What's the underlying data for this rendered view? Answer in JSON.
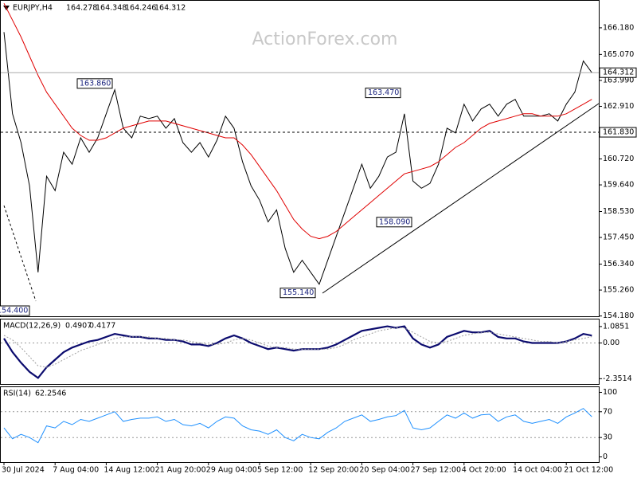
{
  "watermark": "ActionForex.com",
  "chart_data": [
    {
      "type": "ohlc-line",
      "symbol": "EURJPY,H4",
      "last_bar": {
        "open": 164.278,
        "high": 164.348,
        "low": 164.246,
        "close": 164.312
      },
      "categories": [
        "30 Jul 2024",
        null,
        null,
        null,
        null,
        null,
        "7 Aug 04:00",
        null,
        null,
        null,
        null,
        null,
        "14 Aug 12:00",
        null,
        null,
        null,
        null,
        null,
        "21 Aug 20:00",
        null,
        null,
        null,
        null,
        null,
        "29 Aug 04:00",
        null,
        null,
        null,
        null,
        null,
        "5 Sep 12:00",
        null,
        null,
        null,
        null,
        null,
        "12 Sep 20:00",
        null,
        null,
        null,
        null,
        null,
        "20 Sep 04:00",
        null,
        null,
        null,
        null,
        null,
        "27 Sep 12:00",
        null,
        null,
        null,
        null,
        null,
        "4 Oct 20:00",
        null,
        null,
        null,
        null,
        null,
        "14 Oct 04:00",
        null,
        null,
        null,
        null,
        null,
        "21 Oct 12:00",
        null,
        null,
        null
      ],
      "series": [
        {
          "name": "Close",
          "color": "#000000",
          "values": [
            166.0,
            162.6,
            161.4,
            159.6,
            156.0,
            160.0,
            159.4,
            161.0,
            160.5,
            161.6,
            161.0,
            161.6,
            162.6,
            163.6,
            162.0,
            161.6,
            162.5,
            162.4,
            162.5,
            162.0,
            162.4,
            161.4,
            161.0,
            161.4,
            160.8,
            161.5,
            162.5,
            162.0,
            160.6,
            159.6,
            159.0,
            158.1,
            158.6,
            157.0,
            156.0,
            156.5,
            156.0,
            155.5,
            156.5,
            157.5,
            158.5,
            159.5,
            160.5,
            159.5,
            160.0,
            160.8,
            161.0,
            162.6,
            159.8,
            159.5,
            159.7,
            160.5,
            162.0,
            161.8,
            163.0,
            162.3,
            162.8,
            163.0,
            162.5,
            163.0,
            163.2,
            162.5,
            162.5,
            162.5,
            162.6,
            162.3,
            163.0,
            163.5,
            164.8,
            164.312
          ]
        },
        {
          "name": "MA",
          "color": "#e00000",
          "values": [
            167.2,
            166.5,
            165.8,
            165.0,
            164.2,
            163.5,
            163.0,
            162.5,
            162.0,
            161.7,
            161.5,
            161.5,
            161.6,
            161.8,
            162.0,
            162.1,
            162.2,
            162.3,
            162.3,
            162.3,
            162.2,
            162.1,
            162.0,
            161.9,
            161.8,
            161.7,
            161.6,
            161.6,
            161.3,
            160.9,
            160.4,
            159.9,
            159.4,
            158.8,
            158.2,
            157.8,
            157.5,
            157.4,
            157.5,
            157.7,
            158.0,
            158.3,
            158.6,
            158.9,
            159.2,
            159.5,
            159.8,
            160.1,
            160.2,
            160.3,
            160.4,
            160.6,
            160.9,
            161.2,
            161.4,
            161.7,
            162.0,
            162.2,
            162.3,
            162.4,
            162.5,
            162.6,
            162.6,
            162.5,
            162.5,
            162.5,
            162.6,
            162.8,
            163.0,
            163.2
          ]
        }
      ],
      "ylim": [
        154.168,
        167.305
      ],
      "yticks": [
        {
          "value": 166.18,
          "label": "166.180"
        },
        {
          "value": 165.07,
          "label": "165.070"
        },
        {
          "value": 163.99,
          "label": "163.990"
        },
        {
          "value": 162.91,
          "label": "162.910"
        },
        {
          "value": 160.72,
          "label": "160.720"
        },
        {
          "value": 159.64,
          "label": "159.640"
        },
        {
          "value": 158.53,
          "label": "158.530"
        },
        {
          "value": 157.45,
          "label": "157.450"
        },
        {
          "value": 156.34,
          "label": "156.340"
        },
        {
          "value": 155.26,
          "label": "155.260"
        },
        {
          "value": 154.18,
          "label": "154.180"
        }
      ],
      "level": {
        "value": 161.83,
        "label": "161.830"
      },
      "annotations": [
        {
          "value": 163.86,
          "label": "163.860"
        },
        {
          "value": 163.47,
          "label": "163.470"
        },
        {
          "value": 155.14,
          "label": "155.140"
        },
        {
          "value": 158.09,
          "label": "158.090"
        },
        {
          "value": 154.4,
          "label": "154.400"
        }
      ]
    },
    {
      "type": "macd",
      "title": "MACD(12,26,9)",
      "series": [
        {
          "name": "MACD",
          "color": "#0b0b6e",
          "values": [
            0.3,
            -0.6,
            -1.3,
            -1.9,
            -2.3,
            -1.6,
            -1.1,
            -0.6,
            -0.3,
            -0.1,
            0.1,
            0.2,
            0.4,
            0.6,
            0.5,
            0.4,
            0.4,
            0.3,
            0.3,
            0.2,
            0.2,
            0.1,
            -0.1,
            -0.1,
            -0.2,
            0.0,
            0.3,
            0.5,
            0.3,
            0.0,
            -0.2,
            -0.4,
            -0.3,
            -0.4,
            -0.5,
            -0.4,
            -0.4,
            -0.4,
            -0.3,
            -0.1,
            0.2,
            0.5,
            0.8,
            0.9,
            1.0,
            1.1,
            1.0,
            1.1,
            0.3,
            -0.1,
            -0.3,
            -0.1,
            0.4,
            0.6,
            0.8,
            0.7,
            0.7,
            0.8,
            0.4,
            0.3,
            0.3,
            0.1,
            0.0,
            0.0,
            0.0,
            0.0,
            0.1,
            0.3,
            0.6,
            0.4907
          ]
        },
        {
          "name": "Signal",
          "color": "#a0a0a0",
          "values": [
            0.5,
            0.2,
            -0.3,
            -0.9,
            -1.5,
            -1.6,
            -1.4,
            -1.1,
            -0.8,
            -0.5,
            -0.3,
            -0.1,
            0.1,
            0.3,
            0.4,
            0.4,
            0.4,
            0.4,
            0.3,
            0.3,
            0.2,
            0.2,
            0.1,
            0.0,
            -0.1,
            -0.1,
            0.0,
            0.2,
            0.3,
            0.2,
            0.0,
            -0.2,
            -0.3,
            -0.3,
            -0.4,
            -0.4,
            -0.4,
            -0.4,
            -0.4,
            -0.3,
            -0.1,
            0.2,
            0.4,
            0.6,
            0.8,
            0.9,
            1.0,
            1.0,
            0.7,
            0.4,
            0.1,
            0.0,
            0.1,
            0.3,
            0.5,
            0.6,
            0.7,
            0.7,
            0.6,
            0.5,
            0.4,
            0.3,
            0.2,
            0.1,
            0.1,
            0.0,
            0.1,
            0.2,
            0.3,
            0.4177
          ]
        }
      ],
      "ylim": [
        -2.7,
        1.55
      ],
      "yticks": [
        1.0851,
        {
          "value": 0,
          "label": "0.00"
        },
        -2.3514
      ],
      "levels": [
        0
      ]
    },
    {
      "type": "rsi",
      "title": "RSI(14)",
      "series": [
        {
          "name": "RSI",
          "color": "#1e90ff",
          "values": [
            45,
            28,
            35,
            30,
            22,
            48,
            45,
            55,
            50,
            58,
            55,
            60,
            65,
            70,
            55,
            58,
            60,
            60,
            62,
            55,
            58,
            50,
            48,
            52,
            45,
            55,
            62,
            60,
            48,
            42,
            40,
            35,
            42,
            30,
            25,
            35,
            30,
            28,
            38,
            45,
            55,
            60,
            65,
            55,
            58,
            62,
            64,
            72,
            45,
            42,
            45,
            55,
            65,
            60,
            68,
            60,
            65,
            66,
            55,
            62,
            65,
            55,
            52,
            55,
            58,
            52,
            62,
            68,
            75,
            62.2546
          ]
        }
      ],
      "ylim": [
        -8,
        108
      ],
      "yticks": [
        100,
        70,
        30,
        0
      ],
      "levels": [
        70,
        30
      ]
    }
  ]
}
